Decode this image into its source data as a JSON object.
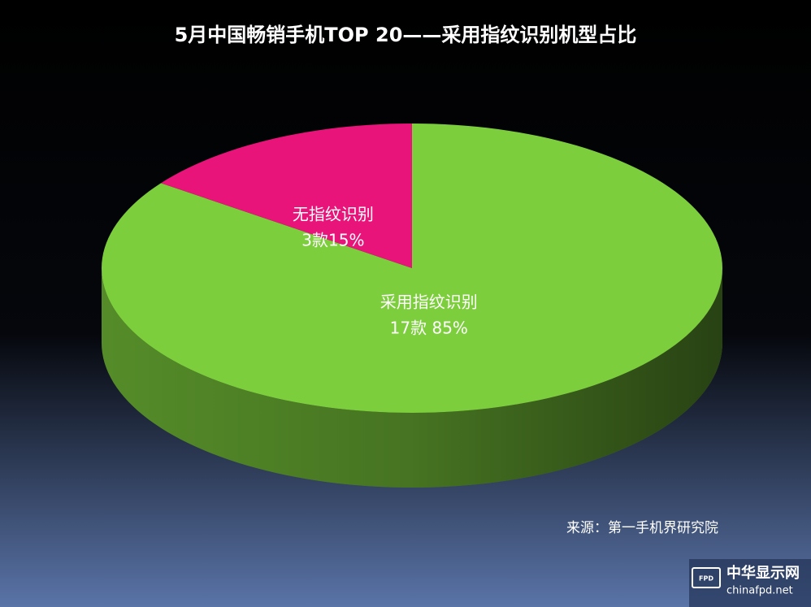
{
  "chart_data": {
    "type": "pie3d",
    "title": "5月中国畅销手机TOP 20——采用指纹识别机型占比",
    "categories": [
      "无指纹识别",
      "采用指纹识别"
    ],
    "values": [
      15,
      85
    ],
    "value_labels": [
      "3款15%",
      "17款 85%"
    ],
    "colors": [
      "#e8147a",
      "#7dce3c"
    ],
    "source": "来源：第一手机界研究院"
  },
  "watermark": {
    "badge": "FPD",
    "name": "中华显示网",
    "url": "chinafpd.net"
  }
}
